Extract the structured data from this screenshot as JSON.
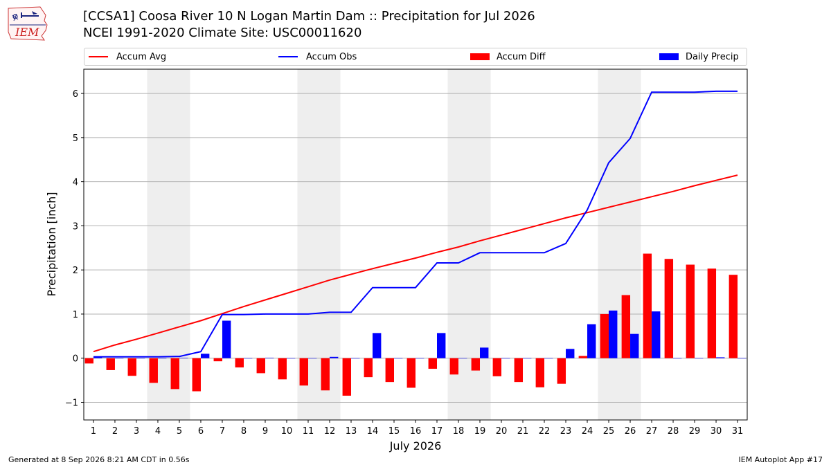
{
  "logo_text": "IEM",
  "title_line1": "[CCSA1] Coosa River 10 N Logan Martin Dam :: Precipitation for Jul 2026",
  "title_line2": "NCEI 1991-2020 Climate Site: USC00011620",
  "footer_left": "Generated at 8 Sep 2026 8:21 AM CDT in 0.56s",
  "footer_right": "IEM Autoplot App #17",
  "colors": {
    "avg": "#ff0000",
    "obs": "#0000ff",
    "diff": "#ff0000",
    "daily": "#0000ff",
    "weekend": "#eeeeee",
    "grid": "#b0b0b0"
  },
  "chart_data": {
    "type": "bar",
    "xlabel": "July 2026",
    "ylabel": "Precipitation [inch]",
    "ylim": [
      -1.4,
      6.55
    ],
    "yticks": [
      -1,
      0,
      1,
      2,
      3,
      4,
      5,
      6
    ],
    "ytick_labels": [
      "−1",
      "0",
      "1",
      "2",
      "3",
      "4",
      "5",
      "6"
    ],
    "grid": true,
    "legend_placement": "top",
    "categories": [
      "1",
      "2",
      "3",
      "4",
      "5",
      "6",
      "7",
      "8",
      "9",
      "10",
      "11",
      "12",
      "13",
      "14",
      "15",
      "16",
      "17",
      "18",
      "19",
      "20",
      "21",
      "22",
      "23",
      "24",
      "25",
      "26",
      "27",
      "28",
      "29",
      "30",
      "31"
    ],
    "weekend_spans": [
      [
        4,
        5
      ],
      [
        11,
        12
      ],
      [
        18,
        19
      ],
      [
        25,
        26
      ]
    ],
    "series": [
      {
        "name": "Accum Avg",
        "kind": "line",
        "values": [
          0.15,
          0.3,
          0.43,
          0.57,
          0.71,
          0.85,
          1.01,
          1.17,
          1.32,
          1.47,
          1.62,
          1.77,
          1.9,
          2.03,
          2.15,
          2.27,
          2.4,
          2.52,
          2.66,
          2.79,
          2.92,
          3.05,
          3.18,
          3.3,
          3.42,
          3.54,
          3.66,
          3.78,
          3.91,
          4.03,
          4.15
        ]
      },
      {
        "name": "Accum Obs",
        "kind": "line",
        "values": [
          0.03,
          0.03,
          0.03,
          0.03,
          0.04,
          0.15,
          0.99,
          0.99,
          1.0,
          1.0,
          1.0,
          1.04,
          1.04,
          1.6,
          1.6,
          1.6,
          2.16,
          2.16,
          2.39,
          2.39,
          2.39,
          2.39,
          2.6,
          3.36,
          4.43,
          4.98,
          6.03,
          6.03,
          6.03,
          6.05,
          6.05
        ]
      },
      {
        "name": "Accum Diff",
        "kind": "bar",
        "values": [
          -0.12,
          -0.27,
          -0.4,
          -0.56,
          -0.7,
          -0.75,
          -0.07,
          -0.21,
          -0.34,
          -0.48,
          -0.62,
          -0.73,
          -0.85,
          -0.43,
          -0.54,
          -0.67,
          -0.24,
          -0.37,
          -0.28,
          -0.41,
          -0.54,
          -0.66,
          -0.58,
          0.05,
          1.0,
          1.43,
          2.37,
          2.25,
          2.12,
          2.03,
          1.89
        ]
      },
      {
        "name": "Daily Precip",
        "kind": "bar",
        "values": [
          0.03,
          0.0,
          0.0,
          0.0,
          0.01,
          0.1,
          0.85,
          0.0,
          0.01,
          0.0,
          0.0,
          0.03,
          0.0,
          0.57,
          0.0,
          0.0,
          0.57,
          0.0,
          0.24,
          0.0,
          0.0,
          0.0,
          0.21,
          0.77,
          1.08,
          0.55,
          1.06,
          0.0,
          0.0,
          0.02,
          0.0
        ]
      }
    ]
  }
}
